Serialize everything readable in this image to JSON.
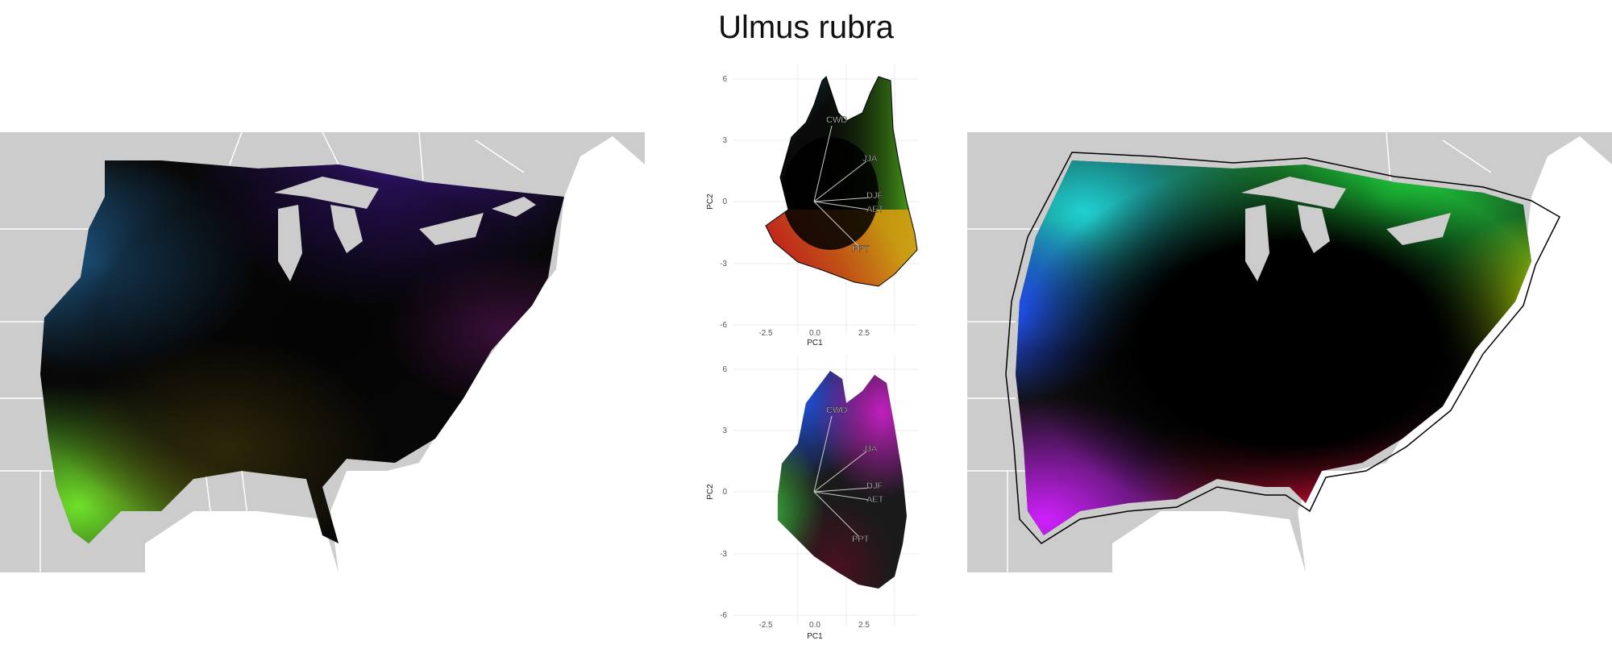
{
  "title": "Ulmus rubra",
  "pca_top": {
    "x_ticks": [
      "-2.5",
      "0.0",
      "2.5"
    ],
    "y_ticks": [
      "6",
      "3",
      "0",
      "-3",
      "-6"
    ],
    "xlabel": "PC1",
    "ylabel": "PC2",
    "vectors": [
      "CWD",
      "JJA",
      "DJF",
      "AET",
      "PPT"
    ]
  },
  "pca_bottom": {
    "x_ticks": [
      "-2.5",
      "0.0",
      "2.5"
    ],
    "y_ticks": [
      "6",
      "3",
      "0",
      "-3",
      "-6"
    ],
    "xlabel": "PC1",
    "ylabel": "PC2",
    "vectors": [
      "CWD",
      "JJA",
      "DJF",
      "AET",
      "PPT"
    ]
  },
  "colors": {
    "land": "#cccccc",
    "border": "#ffffff",
    "hull": "#000000"
  }
}
